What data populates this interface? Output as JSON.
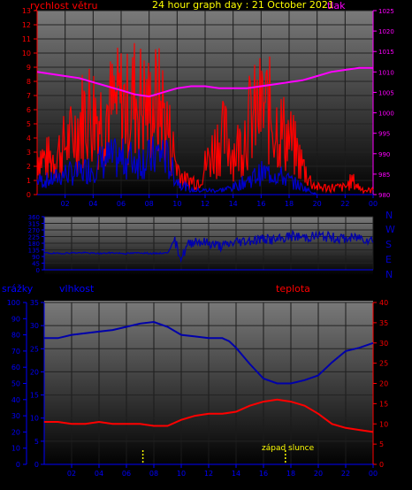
{
  "header": {
    "left_label": "rychlost větru",
    "title": "24 hour graph day : 21 October 2021",
    "right_label": "tlak"
  },
  "lower_header": {
    "left_label": "srážky",
    "mid_label": "vlhkost",
    "right_label": "teplota"
  },
  "annotation": "západ slunce",
  "direction_labels": [
    "N",
    "W",
    "S",
    "E",
    "N"
  ],
  "x_ticks": [
    "02",
    "04",
    "06",
    "08",
    "10",
    "12",
    "14",
    "16",
    "18",
    "20",
    "22",
    "00"
  ],
  "colors": {
    "wind": "#ff0000",
    "gust_dark": "#0000cc",
    "pressure": "#ff00ff",
    "direction": "#0000aa",
    "humidity": "#0000aa",
    "temperature": "#ff0000",
    "title": "#ffff00",
    "left_axis": "#ff0000",
    "right_axis": "#ff00ff",
    "blue_axis": "#0000ff",
    "sunset": "#ffff00"
  },
  "chart_data": [
    {
      "type": "line",
      "name": "wind-pressure",
      "title": "24 hour graph day : 21 October 2021",
      "x_range_hours": [
        0,
        24
      ],
      "y_left": {
        "label": "rychlost větru",
        "ylim": [
          0,
          13
        ],
        "ticks": [
          0,
          1,
          2,
          3,
          4,
          5,
          6,
          7,
          8,
          9,
          10,
          11,
          12,
          13
        ]
      },
      "y_right": {
        "label": "tlak",
        "ylim": [
          980,
          1025
        ],
        "ticks": [
          980,
          985,
          990,
          995,
          1000,
          1005,
          1010,
          1015,
          1020,
          1025
        ]
      },
      "series": [
        {
          "name": "rychlost větru",
          "axis": "left",
          "x": [
            0,
            0.5,
            1,
            1.5,
            2,
            2.5,
            3,
            3.5,
            4,
            4.5,
            5,
            5.5,
            6,
            6.5,
            7,
            7.5,
            8,
            8.5,
            9,
            9.5,
            10,
            10.5,
            11,
            11.5,
            12,
            12.5,
            13,
            13.5,
            14,
            14.5,
            15,
            15.5,
            16,
            16.5,
            17,
            17.5,
            18,
            18.5,
            19,
            19.5,
            20,
            20.5,
            21,
            21.5,
            22,
            22.5,
            23,
            23.5,
            24
          ],
          "y": [
            3,
            2.5,
            2.5,
            3,
            3.5,
            4,
            5,
            6,
            6,
            5.5,
            6,
            6,
            6.5,
            6,
            7,
            6.5,
            6,
            6.5,
            6,
            4,
            2,
            1,
            1,
            1,
            2,
            3,
            4,
            4,
            3,
            3.5,
            5,
            5.5,
            6,
            6,
            5,
            4.5,
            4,
            3,
            2,
            1,
            0.5,
            0.5,
            0.5,
            0.5,
            0.5,
            1,
            0.5,
            0.3,
            0.3
          ]
        },
        {
          "name": "wind-low",
          "axis": "left",
          "x": [
            0,
            1,
            2,
            3,
            4,
            5,
            6,
            7,
            8,
            9,
            10,
            11,
            12,
            13,
            14,
            15,
            16,
            17,
            18,
            19,
            20,
            21,
            22,
            23,
            24
          ],
          "y": [
            1,
            1,
            1.5,
            1.5,
            2,
            2.5,
            2.5,
            2.5,
            2.5,
            3,
            1,
            0.3,
            0.3,
            0.3,
            0.5,
            1,
            1.5,
            1.5,
            1,
            0.5,
            0,
            0,
            0,
            0,
            0
          ]
        },
        {
          "name": "tlak",
          "axis": "right",
          "x": [
            0,
            1,
            2,
            3,
            4,
            5,
            6,
            7,
            8,
            9,
            10,
            11,
            12,
            13,
            14,
            15,
            16,
            17,
            18,
            19,
            20,
            21,
            22,
            23,
            24
          ],
          "y": [
            1010,
            1009.5,
            1009,
            1008.5,
            1007.5,
            1006.5,
            1005.5,
            1004.5,
            1004,
            1005,
            1006,
            1006.5,
            1006.5,
            1006,
            1006,
            1006,
            1006.5,
            1007,
            1007.5,
            1008,
            1009,
            1010,
            1010.5,
            1011,
            1011
          ]
        }
      ]
    },
    {
      "type": "line",
      "name": "wind-direction",
      "x_range_hours": [
        0,
        24
      ],
      "y_left": {
        "ylim": [
          0,
          360
        ],
        "ticks": [
          0,
          45,
          90,
          135,
          180,
          225,
          270,
          315,
          360
        ]
      },
      "series": [
        {
          "name": "direction",
          "x": [
            0,
            1,
            2,
            3,
            4,
            5,
            6,
            7,
            8,
            9,
            9.5,
            10,
            10.5,
            11,
            12,
            13,
            14,
            15,
            16,
            17,
            18,
            19,
            20,
            21,
            22,
            23,
            24
          ],
          "y": [
            115,
            110,
            115,
            115,
            110,
            115,
            110,
            115,
            110,
            115,
            200,
            80,
            170,
            200,
            180,
            160,
            190,
            200,
            210,
            200,
            230,
            220,
            230,
            220,
            210,
            220,
            200
          ]
        }
      ]
    },
    {
      "type": "line",
      "name": "humidity-temperature",
      "x_range_hours": [
        0,
        24
      ],
      "y_far_left": {
        "label": "srážky",
        "ylim": [
          0,
          100
        ],
        "ticks": [
          0,
          10,
          20,
          30,
          40,
          50,
          60,
          70,
          80,
          90,
          100
        ]
      },
      "y_left": {
        "label": "vlhkost",
        "ylim": [
          0,
          35
        ],
        "ticks": [
          0,
          5,
          10,
          15,
          20,
          25,
          30,
          35
        ]
      },
      "y_right": {
        "label": "teplota",
        "ylim": [
          0,
          40
        ],
        "ticks": [
          0,
          5,
          10,
          15,
          20,
          25,
          30,
          35,
          40
        ]
      },
      "series": [
        {
          "name": "vlhkost",
          "axis": "far_left",
          "x": [
            0,
            1,
            2,
            3,
            4,
            5,
            6,
            7,
            8,
            9,
            10,
            11,
            12,
            13,
            13.5,
            14,
            15,
            16,
            17,
            18,
            19,
            20,
            21,
            22,
            23,
            24
          ],
          "y": [
            78,
            78,
            80,
            81,
            82,
            83,
            85,
            87,
            88,
            85,
            80,
            79,
            78,
            78,
            76,
            72,
            62,
            53,
            50,
            50,
            52,
            55,
            63,
            70,
            72,
            75
          ]
        },
        {
          "name": "teplota",
          "axis": "right",
          "x": [
            0,
            1,
            2,
            3,
            4,
            5,
            6,
            7,
            8,
            9,
            10,
            11,
            12,
            13,
            14,
            15,
            16,
            17,
            18,
            19,
            20,
            21,
            22,
            23,
            24
          ],
          "y": [
            10.5,
            10.5,
            10,
            10,
            10.5,
            10,
            10,
            10,
            9.5,
            9.5,
            11,
            12,
            12.5,
            12.5,
            13,
            14.5,
            15.5,
            16,
            15.5,
            14.5,
            12.5,
            10,
            9,
            8.5,
            8
          ]
        }
      ],
      "markers_hours": [
        7.2,
        17.6
      ]
    }
  ]
}
